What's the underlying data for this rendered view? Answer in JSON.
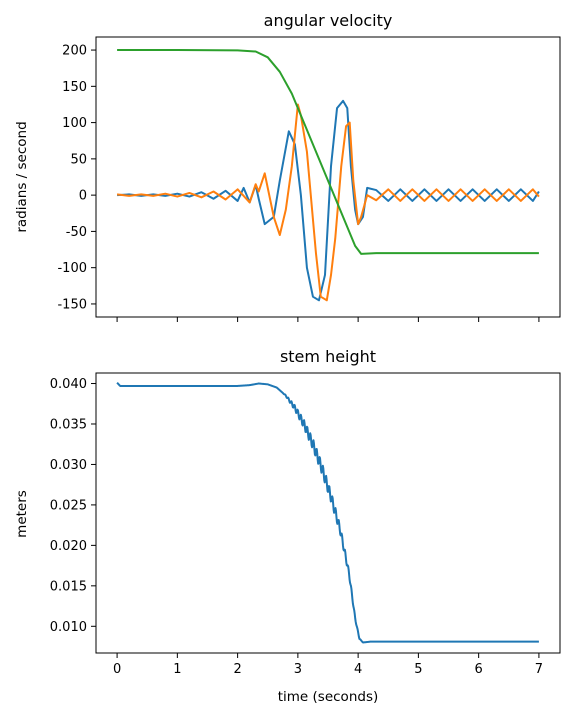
{
  "chart_data": [
    {
      "type": "line",
      "title": "angular velocity",
      "xlabel": "",
      "ylabel": "radians / second",
      "xlim": [
        -0.35,
        7.35
      ],
      "ylim": [
        -168,
        218
      ],
      "xticks": [
        0,
        1,
        2,
        3,
        4,
        5,
        6,
        7
      ],
      "show_xtick_labels": false,
      "yticks": [
        -150,
        -100,
        -50,
        0,
        50,
        100,
        150,
        200
      ],
      "grid": false,
      "legend": "none",
      "series": [
        {
          "color": "#1f77b4",
          "points": [
            [
              0,
              0
            ],
            [
              0.2,
              1
            ],
            [
              0.4,
              -1
            ],
            [
              0.6,
              1
            ],
            [
              0.8,
              -1
            ],
            [
              1.0,
              2
            ],
            [
              1.2,
              -2
            ],
            [
              1.4,
              4
            ],
            [
              1.6,
              -5
            ],
            [
              1.8,
              6
            ],
            [
              2.0,
              -8
            ],
            [
              2.1,
              10
            ],
            [
              2.2,
              -10
            ],
            [
              2.3,
              14
            ],
            [
              2.35,
              -5
            ],
            [
              2.45,
              -40
            ],
            [
              2.6,
              -30
            ],
            [
              2.7,
              20
            ],
            [
              2.85,
              88
            ],
            [
              2.95,
              70
            ],
            [
              3.05,
              0
            ],
            [
              3.15,
              -100
            ],
            [
              3.25,
              -140
            ],
            [
              3.35,
              -145
            ],
            [
              3.45,
              -110
            ],
            [
              3.55,
              40
            ],
            [
              3.65,
              120
            ],
            [
              3.75,
              130
            ],
            [
              3.82,
              120
            ],
            [
              3.88,
              40
            ],
            [
              3.95,
              -20
            ],
            [
              4.0,
              -40
            ],
            [
              4.08,
              -30
            ],
            [
              4.15,
              10
            ],
            [
              4.3,
              7
            ],
            [
              4.5,
              -8
            ],
            [
              4.7,
              8
            ],
            [
              4.9,
              -8
            ],
            [
              5.1,
              8
            ],
            [
              5.3,
              -8
            ],
            [
              5.5,
              8
            ],
            [
              5.7,
              -8
            ],
            [
              5.9,
              8
            ],
            [
              6.1,
              -8
            ],
            [
              6.3,
              8
            ],
            [
              6.5,
              -8
            ],
            [
              6.7,
              8
            ],
            [
              6.9,
              -8
            ],
            [
              7.0,
              5
            ]
          ]
        },
        {
          "color": "#ff7f0e",
          "points": [
            [
              0,
              1
            ],
            [
              0.2,
              -1
            ],
            [
              0.4,
              1
            ],
            [
              0.6,
              -1
            ],
            [
              0.8,
              2
            ],
            [
              1.0,
              -2
            ],
            [
              1.2,
              3
            ],
            [
              1.4,
              -3
            ],
            [
              1.6,
              5
            ],
            [
              1.8,
              -6
            ],
            [
              2.0,
              8
            ],
            [
              2.2,
              -10
            ],
            [
              2.3,
              15
            ],
            [
              2.35,
              5
            ],
            [
              2.45,
              30
            ],
            [
              2.6,
              -30
            ],
            [
              2.7,
              -55
            ],
            [
              2.8,
              -20
            ],
            [
              2.9,
              40
            ],
            [
              3.0,
              125
            ],
            [
              3.05,
              110
            ],
            [
              3.15,
              60
            ],
            [
              3.3,
              -80
            ],
            [
              3.38,
              -140
            ],
            [
              3.48,
              -145
            ],
            [
              3.55,
              -110
            ],
            [
              3.62,
              -60
            ],
            [
              3.72,
              40
            ],
            [
              3.8,
              95
            ],
            [
              3.86,
              100
            ],
            [
              3.92,
              20
            ],
            [
              4.0,
              -40
            ],
            [
              4.05,
              -30
            ],
            [
              4.15,
              0
            ],
            [
              4.3,
              -7
            ],
            [
              4.5,
              8
            ],
            [
              4.7,
              -8
            ],
            [
              4.9,
              8
            ],
            [
              5.1,
              -8
            ],
            [
              5.3,
              8
            ],
            [
              5.5,
              -8
            ],
            [
              5.7,
              8
            ],
            [
              5.9,
              -8
            ],
            [
              6.1,
              8
            ],
            [
              6.3,
              -8
            ],
            [
              6.5,
              8
            ],
            [
              6.7,
              -8
            ],
            [
              6.9,
              8
            ],
            [
              7.0,
              -2
            ]
          ]
        },
        {
          "color": "#2ca02c",
          "points": [
            [
              0,
              200
            ],
            [
              1.0,
              200
            ],
            [
              2.0,
              199.5
            ],
            [
              2.3,
              198
            ],
            [
              2.5,
              190
            ],
            [
              2.7,
              170
            ],
            [
              2.9,
              140
            ],
            [
              3.05,
              110
            ],
            [
              3.2,
              80
            ],
            [
              3.35,
              50
            ],
            [
              3.5,
              20
            ],
            [
              3.65,
              -10
            ],
            [
              3.8,
              -40
            ],
            [
              3.95,
              -70
            ],
            [
              4.05,
              -81
            ],
            [
              4.3,
              -80
            ],
            [
              5.0,
              -80
            ],
            [
              6.0,
              -80
            ],
            [
              7.0,
              -80
            ]
          ]
        }
      ]
    },
    {
      "type": "line",
      "title": "stem height",
      "xlabel": "time (seconds)",
      "ylabel": "meters",
      "xlim": [
        -0.35,
        7.35
      ],
      "ylim": [
        0.0067,
        0.0413
      ],
      "xticks": [
        0,
        1,
        2,
        3,
        4,
        5,
        6,
        7
      ],
      "show_xtick_labels": true,
      "yticks": [
        0.01,
        0.015,
        0.02,
        0.025,
        0.03,
        0.035,
        0.04
      ],
      "ytick_labels": [
        "0.010",
        "0.015",
        "0.020",
        "0.025",
        "0.030",
        "0.035",
        "0.040"
      ],
      "grid": false,
      "legend": "none",
      "series": [
        {
          "color": "#1f77b4",
          "points": [
            [
              0,
              0.0401
            ],
            [
              0.05,
              0.0397
            ],
            [
              1.0,
              0.0397
            ],
            [
              2.0,
              0.0397
            ],
            [
              2.2,
              0.0398
            ],
            [
              2.35,
              0.04
            ],
            [
              2.5,
              0.0399
            ],
            [
              2.65,
              0.0395
            ],
            [
              2.8,
              0.0385
            ],
            [
              2.95,
              0.037
            ],
            [
              3.1,
              0.035
            ],
            [
              3.25,
              0.0325
            ],
            [
              3.4,
              0.0295
            ],
            [
              3.55,
              0.026
            ],
            [
              3.7,
              0.022
            ],
            [
              3.85,
              0.0165
            ],
            [
              3.95,
              0.011
            ],
            [
              4.02,
              0.0085
            ],
            [
              4.08,
              0.008
            ],
            [
              4.2,
              0.0081
            ],
            [
              5.0,
              0.0081
            ],
            [
              6.0,
              0.0081
            ],
            [
              7.0,
              0.0081
            ]
          ],
          "oscillation": {
            "from": 2.75,
            "to": 4.05,
            "amplitude": 0.0007
          }
        }
      ]
    }
  ]
}
